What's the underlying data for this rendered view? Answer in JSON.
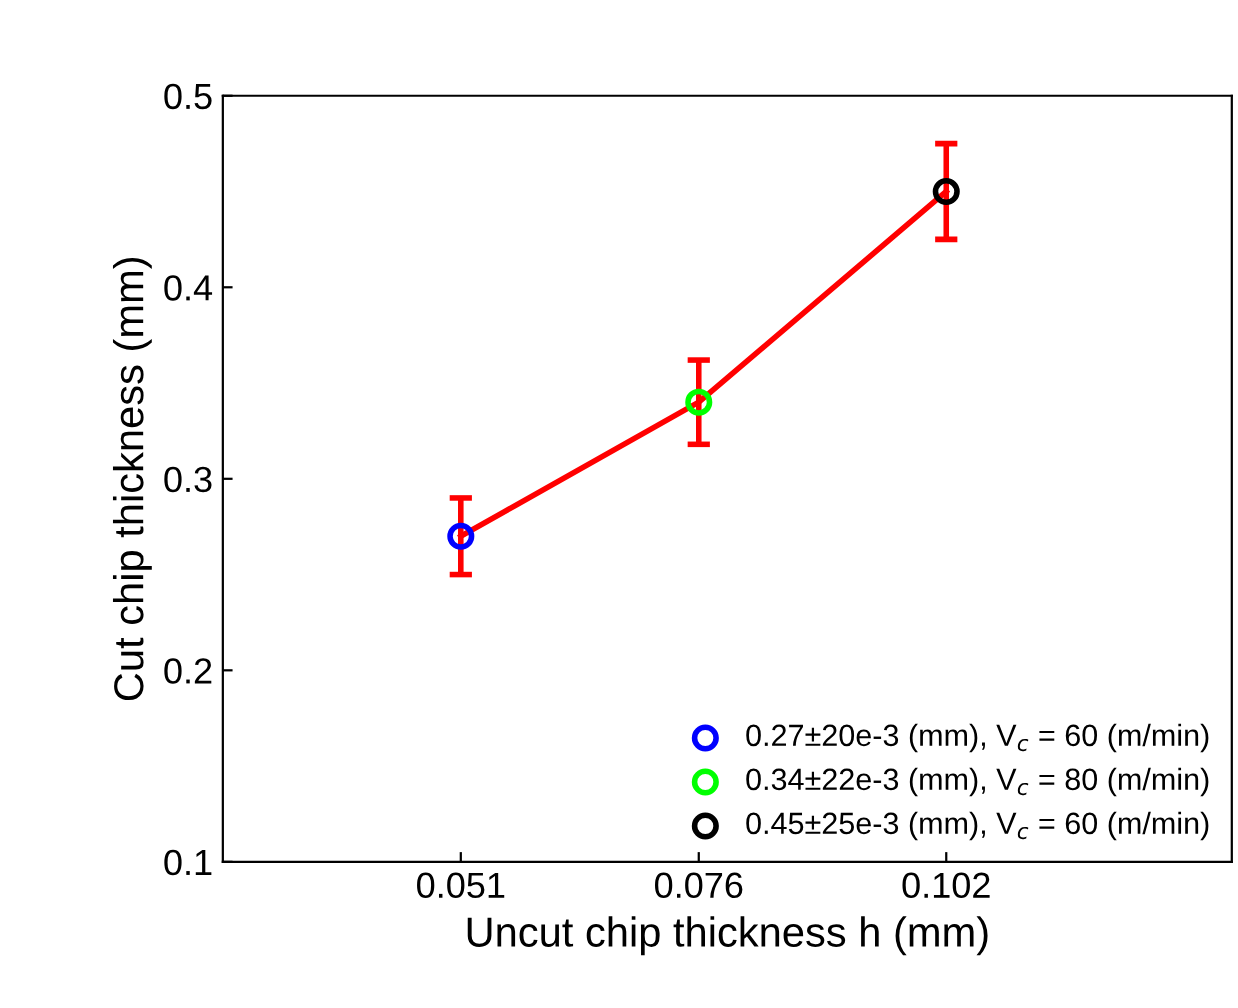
{
  "chart_data": {
    "type": "line",
    "xlabel": "Uncut chip thickness h (mm)",
    "ylabel": "Cut chip thickness (mm)",
    "x": [
      0.051,
      0.076,
      0.102
    ],
    "xlim": [
      0.026,
      0.132
    ],
    "xticks": [
      0.051,
      0.076,
      0.102
    ],
    "ylim": [
      0.1,
      0.5
    ],
    "yticks": [
      0.1,
      0.2,
      0.3,
      0.4,
      0.5
    ],
    "grid": false,
    "legend": "bottom right",
    "series": [
      {
        "color": "#ff0000",
        "values": [
          0.27,
          0.34,
          0.45
        ],
        "errors": [
          0.02,
          0.022,
          0.025
        ],
        "marker": "none",
        "line_style": "solid"
      },
      {
        "type": "scatter",
        "name": "0.27±20e-3 (mm), V$_{c}$ = 60 (m/min)",
        "color": "#0000ff",
        "x": [
          0.051
        ],
        "values": [
          0.27
        ],
        "marker": "circle"
      },
      {
        "type": "scatter",
        "name": "0.34±22e-3 (mm), V$_{c}$ = 80 (m/min)",
        "color": "#00ff00",
        "x": [
          0.076
        ],
        "values": [
          0.34
        ],
        "marker": "circle"
      },
      {
        "type": "scatter",
        "name": "0.45±25e-3 (mm), V$_{c}$ = 60 (m/min)",
        "color": "#000000",
        "x": [
          0.102
        ],
        "values": [
          0.45
        ],
        "marker": "circle"
      }
    ]
  }
}
